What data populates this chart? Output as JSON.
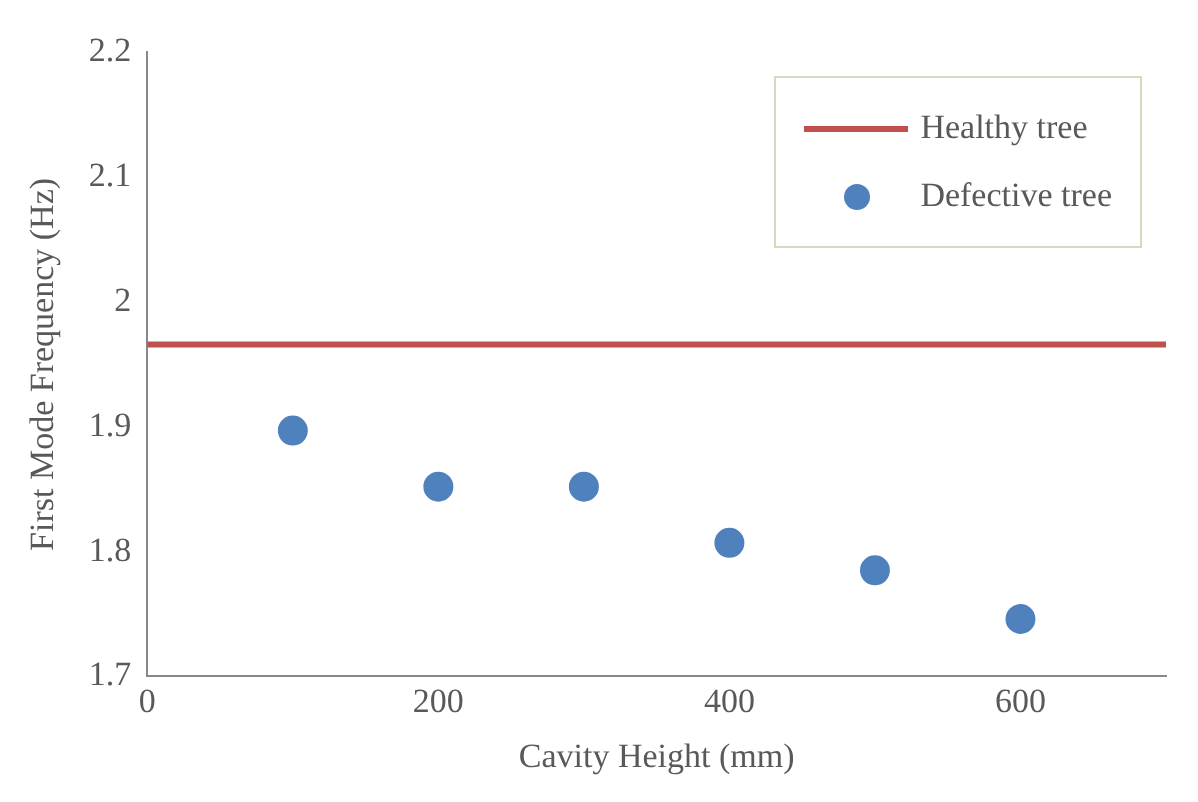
{
  "chart_data": {
    "type": "scatter",
    "xlabel": "Cavity Height (mm)",
    "ylabel": "First Mode Frequency (Hz)",
    "series": [
      {
        "name": "Healthy tree",
        "type": "line",
        "color": "#c0504d",
        "x": [
          0,
          700
        ],
        "values": [
          1.966,
          1.966
        ],
        "marker": "none"
      },
      {
        "name": "Defective tree",
        "type": "scatter",
        "color": "#4f81bd",
        "x": [
          100,
          200,
          300,
          400,
          500,
          600
        ],
        "values": [
          1.897,
          1.852,
          1.852,
          1.807,
          1.785,
          1.746
        ],
        "marker": "circle"
      }
    ],
    "xlim": [
      0,
      700
    ],
    "xticks": [
      0,
      200,
      400,
      600
    ],
    "ylim": [
      1.7,
      2.2
    ],
    "yticks": [
      1.7,
      1.8,
      1.9,
      2,
      2.1,
      2.2
    ],
    "grid": false,
    "legend": "top right"
  }
}
